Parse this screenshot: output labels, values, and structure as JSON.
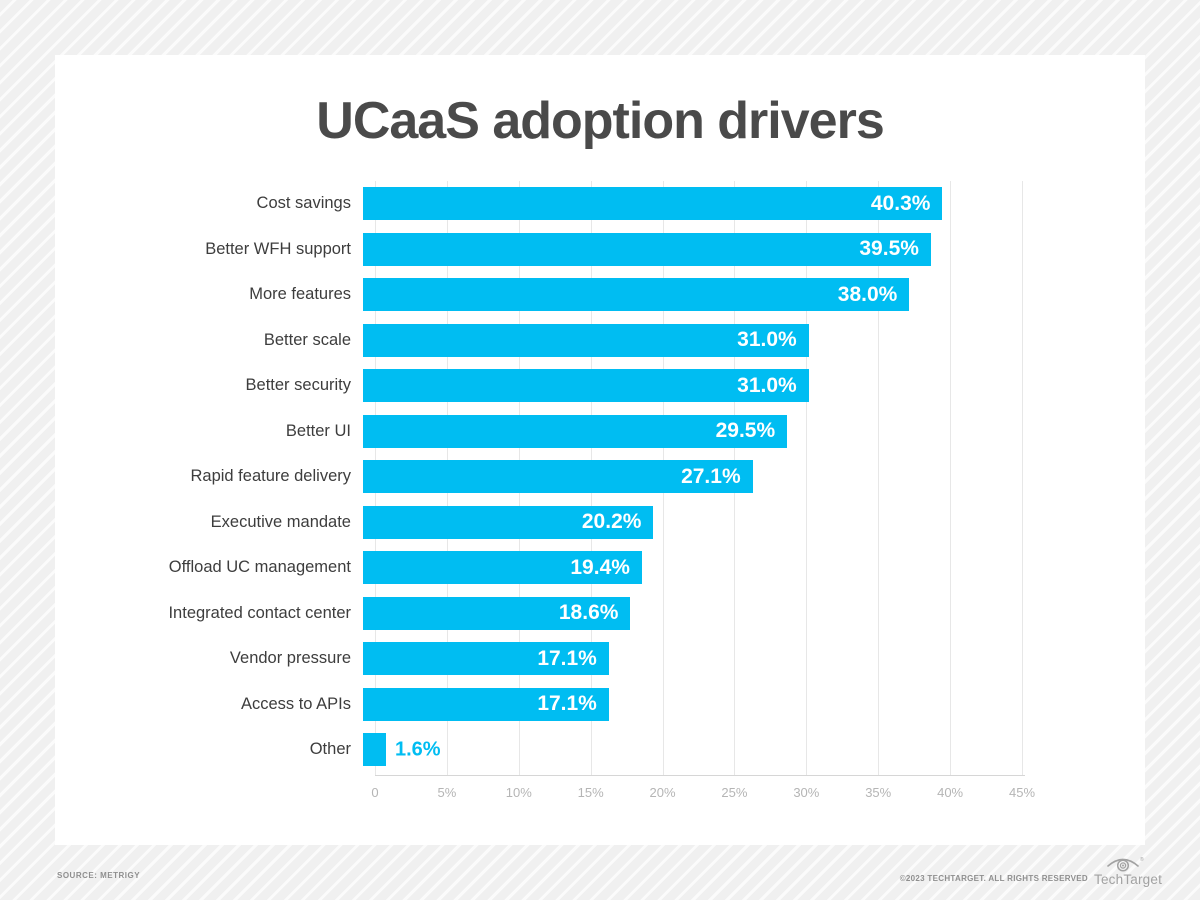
{
  "chart_data": {
    "type": "bar",
    "orientation": "horizontal",
    "title": "UCaaS adoption drivers",
    "categories": [
      "Cost savings",
      "Better WFH support",
      "More features",
      "Better scale",
      "Better security",
      "Better UI",
      "Rapid feature delivery",
      "Executive mandate",
      "Offload UC management",
      "Integrated contact center",
      "Vendor pressure",
      "Access to APIs",
      "Other"
    ],
    "values": [
      40.3,
      39.5,
      38.0,
      31.0,
      31.0,
      29.5,
      27.1,
      20.2,
      19.4,
      18.6,
      17.1,
      17.1,
      1.6
    ],
    "value_labels": [
      "40.3%",
      "39.5%",
      "38.0%",
      "31.0%",
      "31.0%",
      "29.5%",
      "27.1%",
      "20.2%",
      "19.4%",
      "18.6%",
      "17.1%",
      "17.1%",
      "1.6%"
    ],
    "xlabel": "",
    "ylabel": "",
    "xlim": [
      0,
      45
    ],
    "x_ticks": [
      "0",
      "5%",
      "10%",
      "15%",
      "20%",
      "25%",
      "30%",
      "35%",
      "40%",
      "45%"
    ],
    "x_tick_values": [
      0,
      5,
      10,
      15,
      20,
      25,
      30,
      35,
      40,
      45
    ],
    "grid": true,
    "legend": false
  },
  "colors": {
    "bar": "#00bdf2",
    "value_label_inside": "#ffffff",
    "value_label_outside": "#00bdf2",
    "title_text": "#4a4a4a",
    "category_text": "#3d3d3d",
    "tick_text": "#b5b5b5",
    "gridline": "#e7e7e7",
    "footer_text": "#8f8f8f"
  },
  "footer": {
    "source": "SOURCE: METRIGY",
    "copyright": "©2023 TECHTARGET. ALL RIGHTS RESERVED",
    "brand": "TechTarget"
  }
}
